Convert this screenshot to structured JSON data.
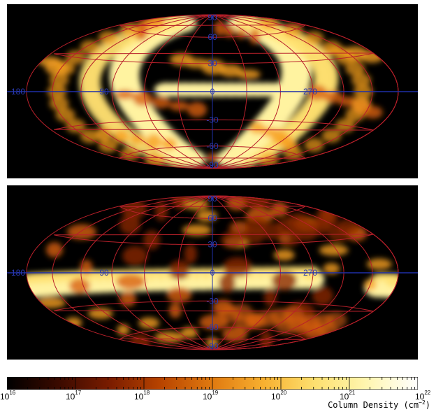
{
  "chart_data": [
    {
      "type": "heatmap",
      "projection": "hammer-aitoff (all-sky)",
      "panel": "top",
      "background": "black",
      "grid": true,
      "grid_color": "#b8202a",
      "equator_color": "#1f2fa8",
      "longitude_labels": [
        "180",
        "90",
        "0",
        "270"
      ],
      "latitude_labels": [
        "90",
        "60",
        "30",
        "0",
        "-30",
        "-60",
        "-90"
      ]
    },
    {
      "type": "heatmap",
      "projection": "hammer-aitoff (all-sky)",
      "panel": "bottom",
      "background": "black",
      "grid": true,
      "grid_color": "#b8202a",
      "equator_color": "#1f2fa8",
      "longitude_labels": [
        "180",
        "90",
        "0",
        "270"
      ],
      "latitude_labels": [
        "90",
        "60",
        "30",
        "0",
        "-30",
        "-60",
        "-90"
      ]
    }
  ],
  "colorbar": {
    "title": "Column Density (cm",
    "title_exp": "−2",
    "title_close": ")",
    "scale": "log",
    "range": [
      16,
      22
    ],
    "ticks": [
      {
        "base": "10",
        "exp": "16"
      },
      {
        "base": "10",
        "exp": "17"
      },
      {
        "base": "10",
        "exp": "18"
      },
      {
        "base": "10",
        "exp": "19"
      },
      {
        "base": "10",
        "exp": "20"
      },
      {
        "base": "10",
        "exp": "21"
      },
      {
        "base": "10",
        "exp": "22"
      }
    ],
    "colors": [
      "#000000",
      "#3a0a00",
      "#7a1c00",
      "#b84400",
      "#e07a10",
      "#f8b030",
      "#fde070",
      "#fff6b0",
      "#ffffff"
    ]
  }
}
